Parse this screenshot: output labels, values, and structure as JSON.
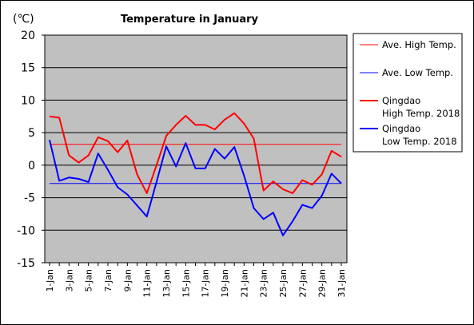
{
  "chart_data": {
    "type": "line",
    "title": "Temperature in January",
    "unit_label": "(℃)",
    "ylim": [
      -15,
      20
    ],
    "yticks": [
      20,
      15,
      10,
      5,
      0,
      -5,
      -10,
      -15
    ],
    "grid": true,
    "legend_position": "right",
    "x": [
      1,
      2,
      3,
      4,
      5,
      6,
      7,
      8,
      9,
      10,
      11,
      12,
      13,
      14,
      15,
      16,
      17,
      18,
      19,
      20,
      21,
      22,
      23,
      24,
      25,
      26,
      27,
      28,
      29,
      30,
      31
    ],
    "xtick_labels": [
      "1-Jan",
      "3-Jan",
      "5-Jan",
      "7-Jan",
      "9-Jan",
      "11-Jan",
      "13-Jan",
      "15-Jan",
      "17-Jan",
      "19-Jan",
      "21-Jan",
      "23-Jan",
      "25-Jan",
      "27-Jan",
      "29-Jan",
      "31-Jan"
    ],
    "series": [
      {
        "name": "Ave. High Temp.",
        "color": "#ff0000",
        "values": [
          3.2,
          3.2,
          3.2,
          3.2,
          3.2,
          3.2,
          3.2,
          3.2,
          3.2,
          3.2,
          3.2,
          3.2,
          3.2,
          3.2,
          3.2,
          3.2,
          3.2,
          3.2,
          3.2,
          3.2,
          3.2,
          3.2,
          3.2,
          3.2,
          3.2,
          3.2,
          3.2,
          3.2,
          3.2,
          3.2,
          3.2
        ]
      },
      {
        "name": "Ave. Low Temp.",
        "color": "#0000ff",
        "values": [
          -2.8,
          -2.8,
          -2.8,
          -2.8,
          -2.8,
          -2.8,
          -2.8,
          -2.8,
          -2.8,
          -2.8,
          -2.8,
          -2.8,
          -2.8,
          -2.8,
          -2.8,
          -2.8,
          -2.8,
          -2.8,
          -2.8,
          -2.8,
          -2.8,
          -2.8,
          -2.8,
          -2.8,
          -2.8,
          -2.8,
          -2.8,
          -2.8,
          -2.8,
          -2.8,
          -2.8
        ]
      },
      {
        "name": "Qingdao High Temp. 2018",
        "legend_lines": [
          "Qingdao",
          "High Temp. 2018"
        ],
        "color": "#ff0000",
        "values": [
          7.5,
          7.3,
          1.5,
          0.4,
          1.5,
          4.3,
          3.7,
          2.0,
          3.8,
          -1.4,
          -4.3,
          0.0,
          4.5,
          6.2,
          7.6,
          6.2,
          6.2,
          5.5,
          7.0,
          8.0,
          6.4,
          4.1,
          -3.9,
          -2.5,
          -3.7,
          -4.3,
          -2.3,
          -3.0,
          -1.4,
          2.2,
          1.3
        ]
      },
      {
        "name": "Qingdao Low Temp. 2018",
        "legend_lines": [
          "Qingdao",
          "Low Temp. 2018"
        ],
        "color": "#0000ff",
        "values": [
          3.9,
          -2.4,
          -1.9,
          -2.1,
          -2.6,
          1.8,
          -0.7,
          -3.4,
          -4.5,
          -6.2,
          -7.9,
          -2.6,
          2.9,
          -0.2,
          3.4,
          -0.5,
          -0.5,
          2.5,
          1.0,
          2.8,
          -1.6,
          -6.6,
          -8.3,
          -7.3,
          -10.8,
          -8.6,
          -6.1,
          -6.6,
          -4.7,
          -1.3,
          -2.8
        ]
      }
    ]
  }
}
